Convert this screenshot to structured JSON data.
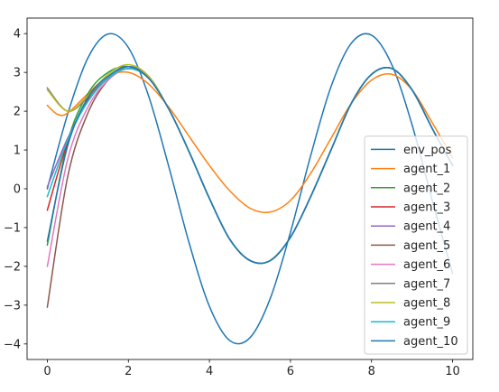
{
  "chart_data": {
    "type": "line",
    "title": "",
    "xlabel": "",
    "ylabel": "",
    "xlim": [
      -0.5,
      10.5
    ],
    "ylim": [
      -4.4,
      4.4
    ],
    "xticks": [
      0,
      2,
      4,
      6,
      8,
      10
    ],
    "yticks": [
      -4,
      -3,
      -2,
      -1,
      0,
      1,
      2,
      3,
      4
    ],
    "grid": false,
    "legend_position": "lower right",
    "series": [
      {
        "name": "env_pos",
        "color": "#1f77b4",
        "x": [
          0,
          0.5,
          1,
          1.5,
          2,
          2.5,
          3,
          3.5,
          4,
          4.5,
          5,
          5.5,
          6,
          6.5,
          7,
          7.5,
          8,
          8.5,
          9,
          9.5,
          10
        ],
        "y": [
          0,
          1.92,
          3.37,
          3.99,
          3.64,
          2.39,
          0.56,
          -1.4,
          -3.03,
          -3.91,
          -3.84,
          -2.83,
          -1.12,
          0.86,
          2.63,
          3.75,
          3.96,
          3.2,
          1.65,
          -0.3,
          -2.18
        ]
      },
      {
        "name": "agent_1",
        "color": "#ff7f0e",
        "x": [
          0,
          0.25,
          0.5,
          1,
          1.5,
          2,
          2.5,
          3,
          3.5,
          4,
          4.5,
          5,
          5.5,
          6,
          6.5,
          7,
          7.5,
          8,
          8.5,
          9,
          9.5,
          10
        ],
        "y": [
          2.15,
          1.92,
          1.95,
          2.45,
          2.9,
          3.0,
          2.7,
          2.1,
          1.35,
          0.6,
          -0.05,
          -0.5,
          -0.6,
          -0.3,
          0.4,
          1.3,
          2.2,
          2.8,
          2.95,
          2.55,
          1.7,
          0.8
        ]
      },
      {
        "name": "agent_2",
        "color": "#2ca02c",
        "x": [
          0,
          0.5,
          1,
          1.5,
          2,
          2.5,
          3,
          3.5,
          4,
          4.5,
          5,
          5.5,
          6,
          6.5,
          7,
          7.5,
          8,
          8.5,
          9,
          9.5,
          10
        ],
        "y": [
          -1.45,
          1.2,
          2.45,
          3.0,
          3.15,
          2.85,
          2.05,
          0.95,
          -0.25,
          -1.3,
          -1.85,
          -1.85,
          -1.25,
          -0.2,
          1.0,
          2.2,
          2.95,
          3.1,
          2.55,
          1.55,
          0.6
        ]
      },
      {
        "name": "agent_3",
        "color": "#d62728",
        "x": [
          0,
          0.5,
          1,
          1.5,
          2,
          2.5,
          3,
          3.5,
          4,
          4.5,
          5,
          5.5,
          6,
          6.5,
          7,
          7.5,
          8,
          8.5,
          9,
          9.5,
          10
        ],
        "y": [
          -0.55,
          1.2,
          2.3,
          2.85,
          3.1,
          2.85,
          2.05,
          0.95,
          -0.25,
          -1.3,
          -1.85,
          -1.85,
          -1.25,
          -0.2,
          1.0,
          2.2,
          2.95,
          3.1,
          2.55,
          1.55,
          0.6
        ]
      },
      {
        "name": "agent_4",
        "color": "#9467bd",
        "x": [
          0,
          0.5,
          1,
          1.5,
          2,
          2.5,
          3,
          3.5,
          4,
          4.5,
          5,
          5.5,
          6,
          6.5,
          7,
          7.5,
          8,
          8.5,
          9,
          9.5,
          10
        ],
        "y": [
          0.05,
          1.3,
          2.25,
          2.85,
          3.1,
          2.85,
          2.05,
          0.95,
          -0.25,
          -1.3,
          -1.85,
          -1.85,
          -1.25,
          -0.2,
          1.0,
          2.2,
          2.95,
          3.1,
          2.55,
          1.55,
          0.6
        ]
      },
      {
        "name": "agent_5",
        "color": "#8c564b",
        "x": [
          0,
          0.5,
          1,
          1.5,
          2,
          2.5,
          3,
          3.5,
          4,
          4.5,
          5,
          5.5,
          6,
          6.5,
          7,
          7.5,
          8,
          8.5,
          9,
          9.5,
          10
        ],
        "y": [
          -3.05,
          0.3,
          1.95,
          2.8,
          3.1,
          2.85,
          2.05,
          0.95,
          -0.25,
          -1.3,
          -1.85,
          -1.85,
          -1.25,
          -0.2,
          1.0,
          2.2,
          2.95,
          3.1,
          2.55,
          1.55,
          0.6
        ]
      },
      {
        "name": "agent_6",
        "color": "#e377c2",
        "x": [
          0,
          0.5,
          1,
          1.5,
          2,
          2.5,
          3,
          3.5,
          4,
          4.5,
          5,
          5.5,
          6,
          6.5,
          7,
          7.5,
          8,
          8.5,
          9,
          9.5,
          10
        ],
        "y": [
          -2.0,
          0.75,
          2.1,
          2.8,
          3.1,
          2.85,
          2.05,
          0.95,
          -0.25,
          -1.3,
          -1.85,
          -1.85,
          -1.25,
          -0.2,
          1.0,
          2.2,
          2.95,
          3.1,
          2.55,
          1.55,
          0.6
        ]
      },
      {
        "name": "agent_7",
        "color": "#7f7f7f",
        "x": [
          0,
          0.5,
          1,
          1.5,
          2,
          2.5,
          3,
          3.5,
          4,
          4.5,
          5,
          5.5,
          6,
          6.5,
          7,
          7.5,
          8,
          8.5,
          9,
          9.5,
          10
        ],
        "y": [
          2.6,
          2.0,
          2.35,
          2.85,
          3.15,
          2.9,
          2.05,
          0.95,
          -0.25,
          -1.3,
          -1.85,
          -1.85,
          -1.25,
          -0.2,
          1.0,
          2.2,
          2.95,
          3.1,
          2.55,
          1.55,
          0.6
        ]
      },
      {
        "name": "agent_8",
        "color": "#bcbd22",
        "x": [
          0,
          0.5,
          1,
          1.5,
          2,
          2.5,
          3,
          3.5,
          4,
          4.5,
          5,
          5.5,
          6,
          6.5,
          7,
          7.5,
          8,
          8.5,
          9,
          9.5,
          10
        ],
        "y": [
          2.55,
          2.0,
          2.4,
          2.95,
          3.2,
          2.9,
          2.05,
          0.95,
          -0.25,
          -1.3,
          -1.85,
          -1.85,
          -1.25,
          -0.2,
          1.0,
          2.2,
          2.95,
          3.1,
          2.55,
          1.55,
          0.6
        ]
      },
      {
        "name": "agent_9",
        "color": "#17becf",
        "x": [
          0,
          0.5,
          1,
          1.5,
          2,
          2.5,
          3,
          3.5,
          4,
          4.5,
          5,
          5.5,
          6,
          6.5,
          7,
          7.5,
          8,
          8.5,
          9,
          9.5,
          10
        ],
        "y": [
          -0.2,
          1.25,
          2.25,
          2.85,
          3.1,
          2.85,
          2.05,
          0.95,
          -0.25,
          -1.3,
          -1.85,
          -1.85,
          -1.25,
          -0.2,
          1.0,
          2.2,
          2.95,
          3.1,
          2.55,
          1.55,
          0.6
        ]
      },
      {
        "name": "agent_10",
        "color": "#1f77b4",
        "x": [
          0,
          0.5,
          1,
          1.5,
          2,
          2.5,
          3,
          3.5,
          4,
          4.5,
          5,
          5.5,
          6,
          6.5,
          7,
          7.5,
          8,
          8.5,
          9,
          9.5,
          10
        ],
        "y": [
          -1.35,
          1.1,
          2.35,
          2.9,
          3.15,
          2.85,
          2.05,
          0.95,
          -0.25,
          -1.3,
          -1.85,
          -1.85,
          -1.25,
          -0.2,
          1.0,
          2.2,
          2.95,
          3.1,
          2.55,
          1.55,
          0.6
        ]
      }
    ]
  }
}
